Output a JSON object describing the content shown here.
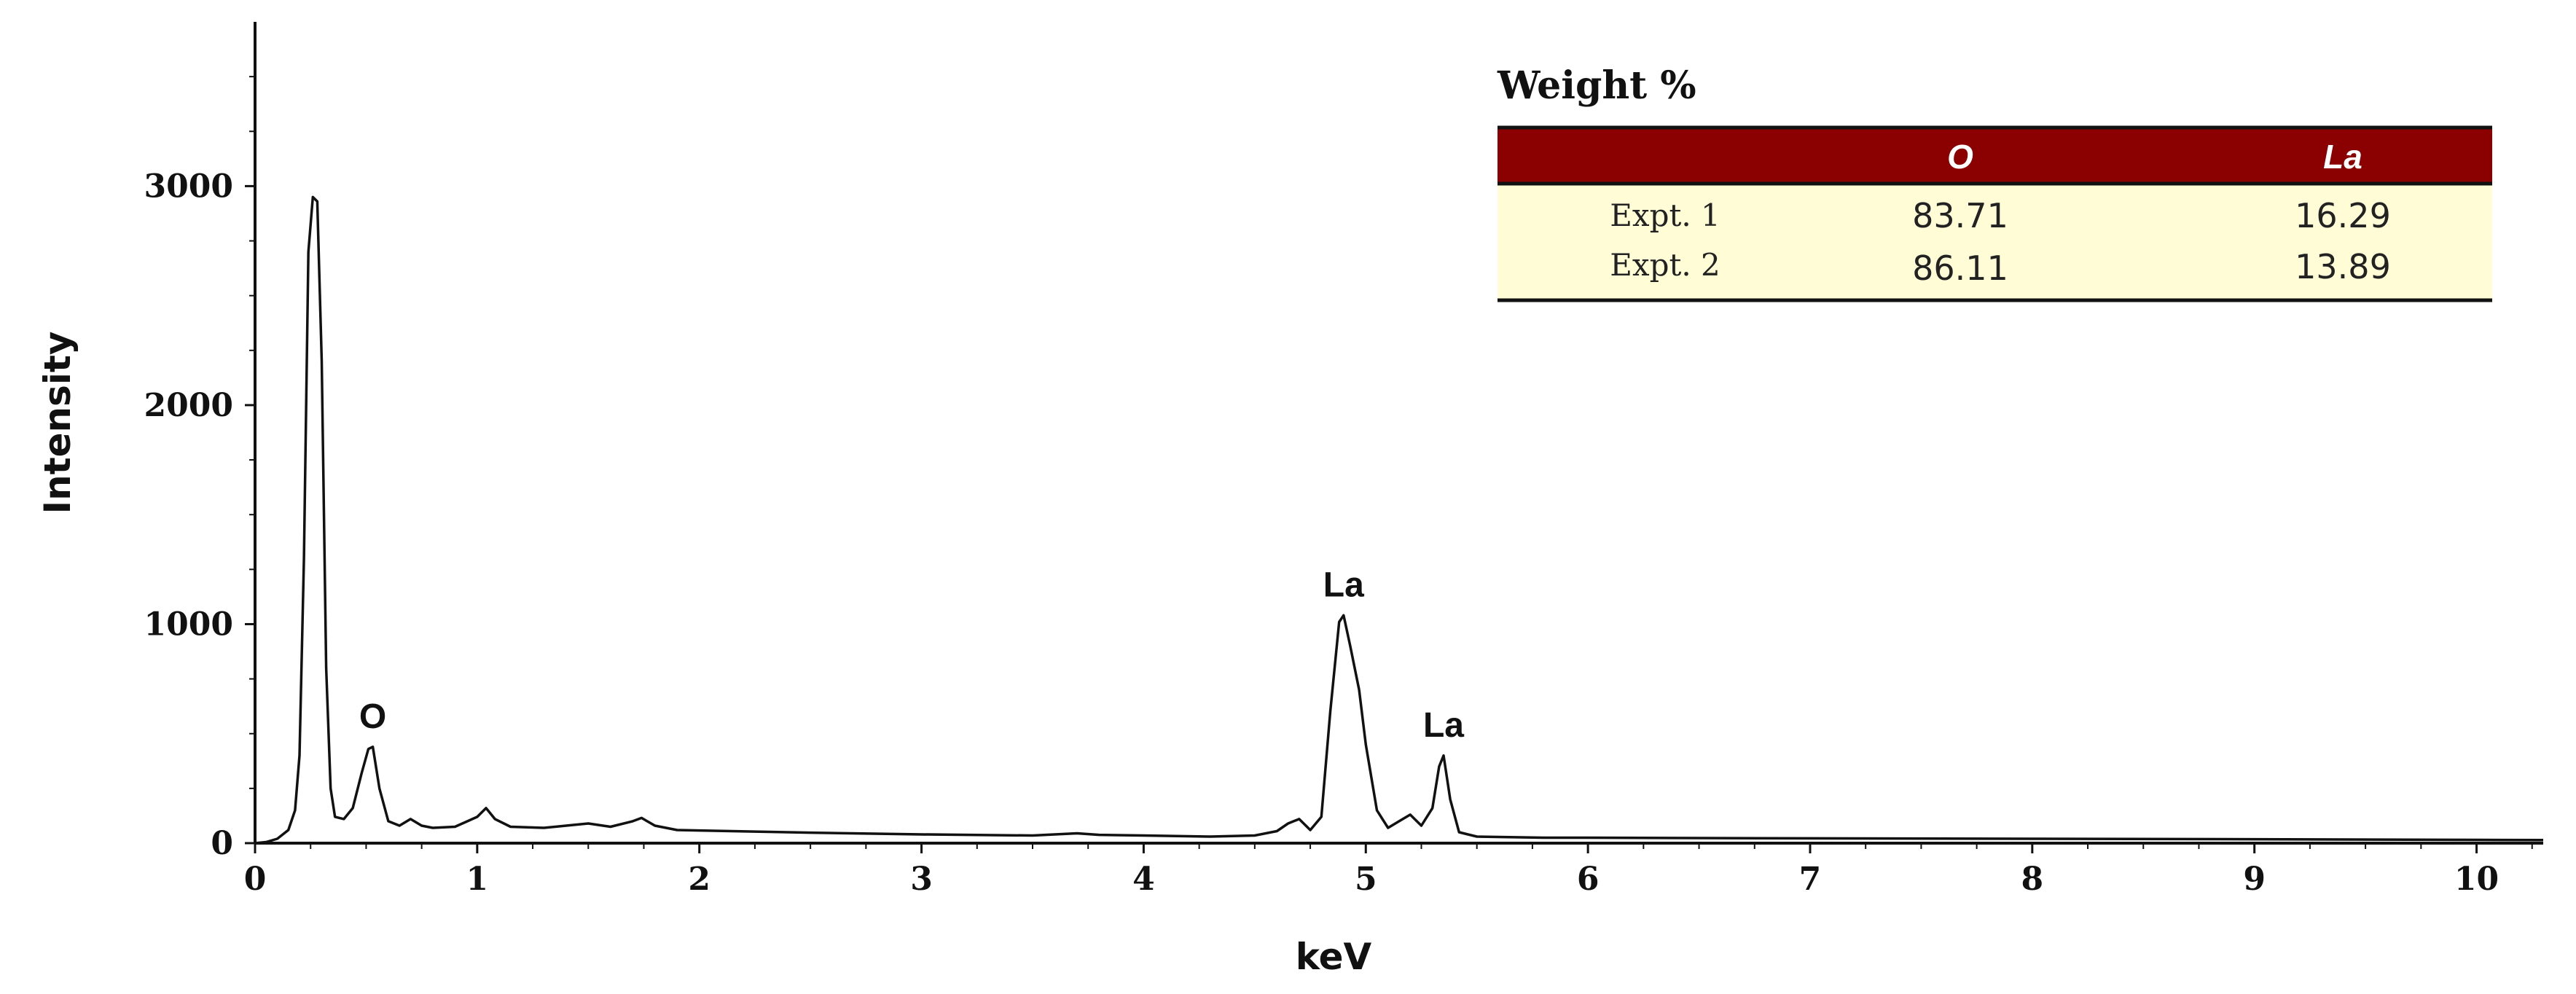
{
  "chart_data": {
    "type": "line",
    "xlabel": "keV",
    "ylabel": "Intensity",
    "xlim": [
      0,
      10.3
    ],
    "ylim": [
      0,
      3750
    ],
    "x_ticks": [
      0,
      1,
      2,
      3,
      4,
      5,
      6,
      7,
      8,
      9,
      10
    ],
    "y_ticks": [
      0,
      1000,
      2000,
      3000
    ],
    "grid": false,
    "series": [
      {
        "points": [
          [
            0,
            0
          ],
          [
            0.05,
            5
          ],
          [
            0.1,
            20
          ],
          [
            0.15,
            60
          ],
          [
            0.18,
            150
          ],
          [
            0.2,
            400
          ],
          [
            0.22,
            1300
          ],
          [
            0.24,
            2700
          ],
          [
            0.26,
            2950
          ],
          [
            0.28,
            2930
          ],
          [
            0.3,
            2200
          ],
          [
            0.32,
            800
          ],
          [
            0.34,
            250
          ],
          [
            0.36,
            120
          ],
          [
            0.4,
            110
          ],
          [
            0.44,
            160
          ],
          [
            0.48,
            320
          ],
          [
            0.51,
            430
          ],
          [
            0.53,
            440
          ],
          [
            0.56,
            250
          ],
          [
            0.6,
            100
          ],
          [
            0.65,
            80
          ],
          [
            0.7,
            110
          ],
          [
            0.75,
            80
          ],
          [
            0.8,
            70
          ],
          [
            0.9,
            75
          ],
          [
            1.0,
            120
          ],
          [
            1.04,
            160
          ],
          [
            1.08,
            110
          ],
          [
            1.15,
            75
          ],
          [
            1.3,
            70
          ],
          [
            1.4,
            80
          ],
          [
            1.5,
            90
          ],
          [
            1.6,
            75
          ],
          [
            1.7,
            100
          ],
          [
            1.74,
            115
          ],
          [
            1.8,
            80
          ],
          [
            1.9,
            60
          ],
          [
            2.0,
            58
          ],
          [
            2.5,
            48
          ],
          [
            3.0,
            40
          ],
          [
            3.5,
            35
          ],
          [
            3.7,
            45
          ],
          [
            3.8,
            38
          ],
          [
            4.0,
            35
          ],
          [
            4.3,
            30
          ],
          [
            4.5,
            35
          ],
          [
            4.6,
            55
          ],
          [
            4.65,
            90
          ],
          [
            4.7,
            110
          ],
          [
            4.75,
            60
          ],
          [
            4.8,
            120
          ],
          [
            4.84,
            600
          ],
          [
            4.88,
            1010
          ],
          [
            4.9,
            1040
          ],
          [
            4.93,
            900
          ],
          [
            4.97,
            700
          ],
          [
            5.0,
            450
          ],
          [
            5.05,
            150
          ],
          [
            5.1,
            70
          ],
          [
            5.15,
            100
          ],
          [
            5.2,
            130
          ],
          [
            5.25,
            80
          ],
          [
            5.3,
            160
          ],
          [
            5.33,
            350
          ],
          [
            5.35,
            400
          ],
          [
            5.38,
            200
          ],
          [
            5.42,
            50
          ],
          [
            5.5,
            30
          ],
          [
            5.8,
            25
          ],
          [
            6.0,
            25
          ],
          [
            7.0,
            22
          ],
          [
            8.0,
            20
          ],
          [
            9.0,
            18
          ],
          [
            10.0,
            15
          ],
          [
            10.3,
            14
          ]
        ]
      }
    ],
    "annotations": [
      {
        "text": "O",
        "x": 0.53,
        "y": 440
      },
      {
        "text": "La",
        "x": 4.9,
        "y": 1040
      },
      {
        "text": "La",
        "x": 5.35,
        "y": 400
      }
    ]
  },
  "weight_table": {
    "title": "Weight %",
    "header_color": "#8b0000",
    "body_color": "#fffcd6",
    "columns": [
      "",
      "O",
      "La"
    ],
    "rows": [
      {
        "label": "Expt. 1",
        "values": [
          "83.71",
          "16.29"
        ]
      },
      {
        "label": "Expt. 2",
        "values": [
          "86.11",
          "13.89"
        ]
      }
    ]
  }
}
